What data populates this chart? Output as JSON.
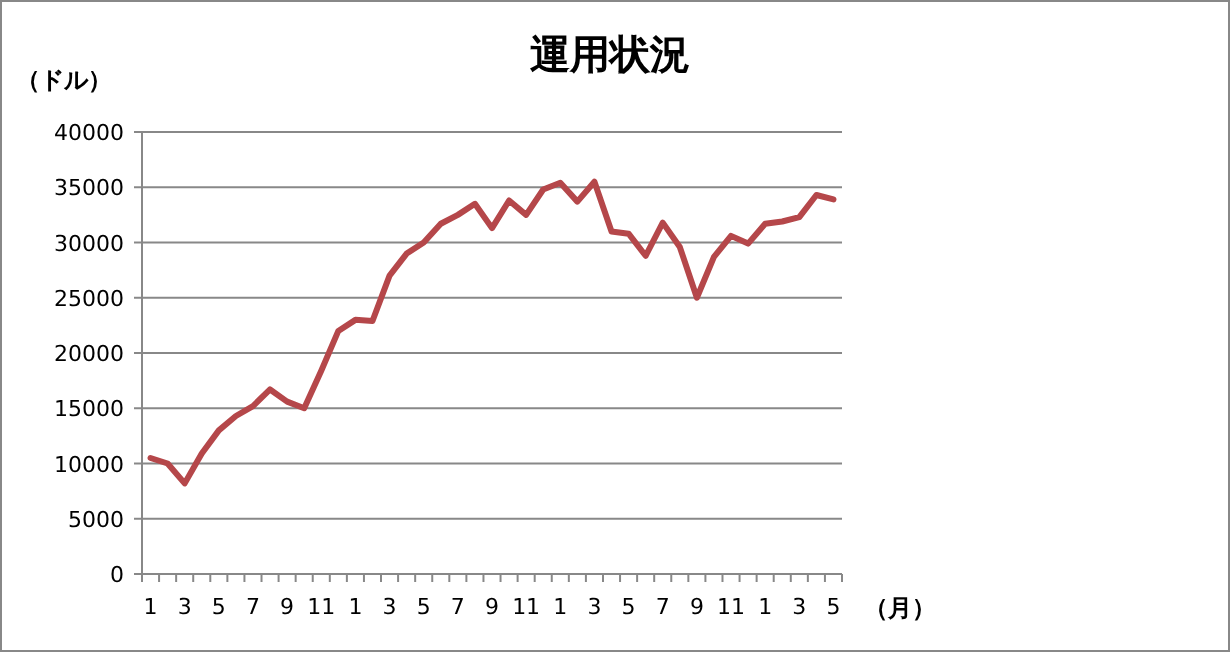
{
  "chart_data": {
    "type": "line",
    "title": "運用状況",
    "ylabel": "（ドル）",
    "xlabel": "（月）",
    "categories": [
      "1",
      null,
      "3",
      null,
      "5",
      null,
      "7",
      null,
      "9",
      null,
      "11",
      null,
      "1",
      null,
      "3",
      null,
      "5",
      null,
      "7",
      null,
      "9",
      null,
      "11",
      null,
      "1",
      null,
      "3",
      null,
      "5",
      null,
      "7",
      null,
      "9",
      null,
      "11",
      null,
      "1",
      null,
      "3",
      null,
      "5"
    ],
    "values": [
      10500,
      10000,
      8200,
      10900,
      13000,
      14300,
      15200,
      16700,
      15600,
      15000,
      18400,
      22000,
      23000,
      22900,
      27000,
      29000,
      30000,
      31700,
      32500,
      33500,
      31300,
      33800,
      32500,
      34800,
      35400,
      33700,
      35500,
      31000,
      30800,
      28800,
      31800,
      29600,
      25000,
      28700,
      30600,
      29900,
      31700,
      31900,
      32300,
      34300,
      33900
    ],
    "color": "#b5474a",
    "ylim": [
      0,
      40000
    ],
    "yticks": [
      0,
      5000,
      10000,
      15000,
      20000,
      25000,
      30000,
      35000,
      40000
    ],
    "grid": "y"
  }
}
